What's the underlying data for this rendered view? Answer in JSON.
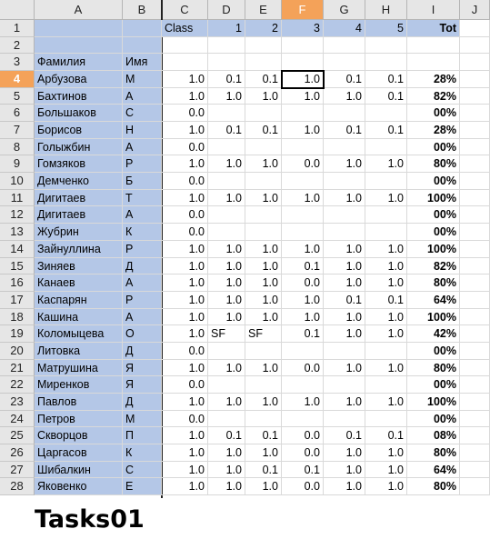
{
  "columns": [
    "A",
    "B",
    "C",
    "D",
    "E",
    "F",
    "G",
    "H",
    "I",
    "J"
  ],
  "selected_column": "F",
  "selected_row": "4",
  "header_row": {
    "C": "Class",
    "D": "1",
    "E": "2",
    "F": "3",
    "G": "4",
    "H": "5",
    "I": "Tot"
  },
  "row3": {
    "A": "Фамилия",
    "B": "Имя"
  },
  "rows": [
    {
      "n": "4",
      "A": "Арбузова",
      "B": "М",
      "C": "1.0",
      "D": "0.1",
      "E": "0.1",
      "F": "1.0",
      "G": "0.1",
      "H": "0.1",
      "I": "28%"
    },
    {
      "n": "5",
      "A": "Бахтинов",
      "B": "А",
      "C": "1.0",
      "D": "1.0",
      "E": "1.0",
      "F": "1.0",
      "G": "1.0",
      "H": "0.1",
      "I": "82%"
    },
    {
      "n": "6",
      "A": "Большаков",
      "B": "С",
      "C": "0.0",
      "D": "",
      "E": "",
      "F": "",
      "G": "",
      "H": "",
      "I": "00%"
    },
    {
      "n": "7",
      "A": "Борисов",
      "B": "Н",
      "C": "1.0",
      "D": "0.1",
      "E": "0.1",
      "F": "1.0",
      "G": "0.1",
      "H": "0.1",
      "I": "28%"
    },
    {
      "n": "8",
      "A": "Голыжбин",
      "B": "А",
      "C": "0.0",
      "D": "",
      "E": "",
      "F": "",
      "G": "",
      "H": "",
      "I": "00%"
    },
    {
      "n": "9",
      "A": "Гомзяков",
      "B": "Р",
      "C": "1.0",
      "D": "1.0",
      "E": "1.0",
      "F": "0.0",
      "G": "1.0",
      "H": "1.0",
      "I": "80%"
    },
    {
      "n": "10",
      "A": "Демченко",
      "B": "Б",
      "C": "0.0",
      "D": "",
      "E": "",
      "F": "",
      "G": "",
      "H": "",
      "I": "00%"
    },
    {
      "n": "11",
      "A": "Дигитаев",
      "B": "Т",
      "C": "1.0",
      "D": "1.0",
      "E": "1.0",
      "F": "1.0",
      "G": "1.0",
      "H": "1.0",
      "I": "100%"
    },
    {
      "n": "12",
      "A": "Дигитаев",
      "B": "А",
      "C": "0.0",
      "D": "",
      "E": "",
      "F": "",
      "G": "",
      "H": "",
      "I": "00%"
    },
    {
      "n": "13",
      "A": "Жубрин",
      "B": "К",
      "C": "0.0",
      "D": "",
      "E": "",
      "F": "",
      "G": "",
      "H": "",
      "I": "00%"
    },
    {
      "n": "14",
      "A": "Зайнуллина",
      "B": "Р",
      "C": "1.0",
      "D": "1.0",
      "E": "1.0",
      "F": "1.0",
      "G": "1.0",
      "H": "1.0",
      "I": "100%"
    },
    {
      "n": "15",
      "A": "Зиняев",
      "B": "Д",
      "C": "1.0",
      "D": "1.0",
      "E": "1.0",
      "F": "0.1",
      "G": "1.0",
      "H": "1.0",
      "I": "82%"
    },
    {
      "n": "16",
      "A": "Канаев",
      "B": "А",
      "C": "1.0",
      "D": "1.0",
      "E": "1.0",
      "F": "0.0",
      "G": "1.0",
      "H": "1.0",
      "I": "80%"
    },
    {
      "n": "17",
      "A": "Каспарян",
      "B": "Р",
      "C": "1.0",
      "D": "1.0",
      "E": "1.0",
      "F": "1.0",
      "G": "0.1",
      "H": "0.1",
      "I": "64%"
    },
    {
      "n": "18",
      "A": "Кашина",
      "B": "А",
      "C": "1.0",
      "D": "1.0",
      "E": "1.0",
      "F": "1.0",
      "G": "1.0",
      "H": "1.0",
      "I": "100%"
    },
    {
      "n": "19",
      "A": "Коломыцева",
      "B": "О",
      "C": "1.0",
      "D": "SF",
      "E": "SF",
      "F": "0.1",
      "G": "1.0",
      "H": "1.0",
      "I": "42%"
    },
    {
      "n": "20",
      "A": "Литовка",
      "B": "Д",
      "C": "0.0",
      "D": "",
      "E": "",
      "F": "",
      "G": "",
      "H": "",
      "I": "00%"
    },
    {
      "n": "21",
      "A": "Матрушина",
      "B": "Я",
      "C": "1.0",
      "D": "1.0",
      "E": "1.0",
      "F": "0.0",
      "G": "1.0",
      "H": "1.0",
      "I": "80%"
    },
    {
      "n": "22",
      "A": "Миренков",
      "B": "Я",
      "C": "0.0",
      "D": "",
      "E": "",
      "F": "",
      "G": "",
      "H": "",
      "I": "00%"
    },
    {
      "n": "23",
      "A": "Павлов",
      "B": "Д",
      "C": "1.0",
      "D": "1.0",
      "E": "1.0",
      "F": "1.0",
      "G": "1.0",
      "H": "1.0",
      "I": "100%"
    },
    {
      "n": "24",
      "A": "Петров",
      "B": "М",
      "C": "0.0",
      "D": "",
      "E": "",
      "F": "",
      "G": "",
      "H": "",
      "I": "00%"
    },
    {
      "n": "25",
      "A": "Скворцов",
      "B": "П",
      "C": "1.0",
      "D": "0.1",
      "E": "0.1",
      "F": "0.0",
      "G": "0.1",
      "H": "0.1",
      "I": "08%"
    },
    {
      "n": "26",
      "A": "Царгасов",
      "B": "К",
      "C": "1.0",
      "D": "1.0",
      "E": "1.0",
      "F": "0.0",
      "G": "1.0",
      "H": "1.0",
      "I": "80%"
    },
    {
      "n": "27",
      "A": "Шибалкин",
      "B": "С",
      "C": "1.0",
      "D": "1.0",
      "E": "0.1",
      "F": "0.1",
      "G": "1.0",
      "H": "1.0",
      "I": "64%"
    },
    {
      "n": "28",
      "A": "Яковенко",
      "B": "Е",
      "C": "1.0",
      "D": "1.0",
      "E": "1.0",
      "F": "0.0",
      "G": "1.0",
      "H": "1.0",
      "I": "80%"
    }
  ],
  "caption": "Tasks01",
  "colors": {
    "name_bg": "#b4c7e7",
    "header_bg": "#e6e6e6",
    "selected_header": "#f4a259"
  }
}
